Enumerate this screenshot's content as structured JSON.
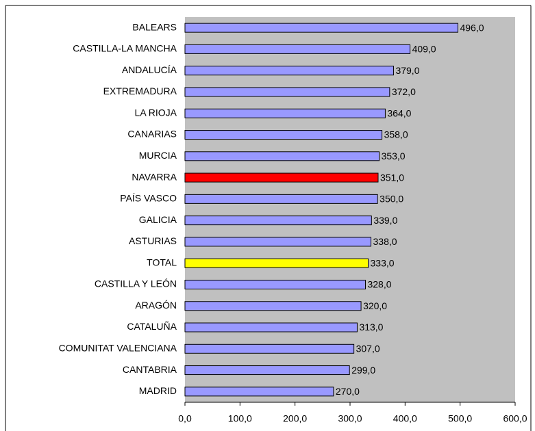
{
  "chart_data": {
    "type": "bar",
    "orientation": "horizontal",
    "categories": [
      "BALEARS",
      "CASTILLA-LA MANCHA",
      "ANDALUCÍA",
      "EXTREMADURA",
      "LA RIOJA",
      "CANARIAS",
      "MURCIA",
      "NAVARRA",
      "PAÍS VASCO",
      "GALICIA",
      "ASTURIAS",
      "TOTAL",
      "CASTILLA Y LEÓN",
      "ARAGÓN",
      "CATALUÑA",
      "COMUNITAT VALENCIANA",
      "CANTABRIA",
      "MADRID"
    ],
    "values": [
      496,
      409,
      379,
      372,
      364,
      358,
      353,
      351,
      350,
      339,
      338,
      333,
      328,
      320,
      313,
      307,
      299,
      270
    ],
    "value_labels": [
      "496,0",
      "409,0",
      "379,0",
      "372,0",
      "364,0",
      "358,0",
      "353,0",
      "351,0",
      "350,0",
      "339,0",
      "338,0",
      "333,0",
      "328,0",
      "320,0",
      "313,0",
      "307,0",
      "299,0",
      "270,0"
    ],
    "colors": [
      "#9999ff",
      "#9999ff",
      "#9999ff",
      "#9999ff",
      "#9999ff",
      "#9999ff",
      "#9999ff",
      "#ff0000",
      "#9999ff",
      "#9999ff",
      "#9999ff",
      "#ffff00",
      "#9999ff",
      "#9999ff",
      "#9999ff",
      "#9999ff",
      "#9999ff",
      "#9999ff"
    ],
    "xlim": [
      0,
      600
    ],
    "xticks": [
      {
        "value": 0,
        "label": "0,0"
      },
      {
        "value": 100,
        "label": "100,0"
      },
      {
        "value": 200,
        "label": "200,0"
      },
      {
        "value": 300,
        "label": "300,0"
      },
      {
        "value": 400,
        "label": "400,0"
      },
      {
        "value": 500,
        "label": "500,0"
      },
      {
        "value": 600,
        "label": "600,0"
      }
    ],
    "plot_background": "#c0c0c0"
  }
}
